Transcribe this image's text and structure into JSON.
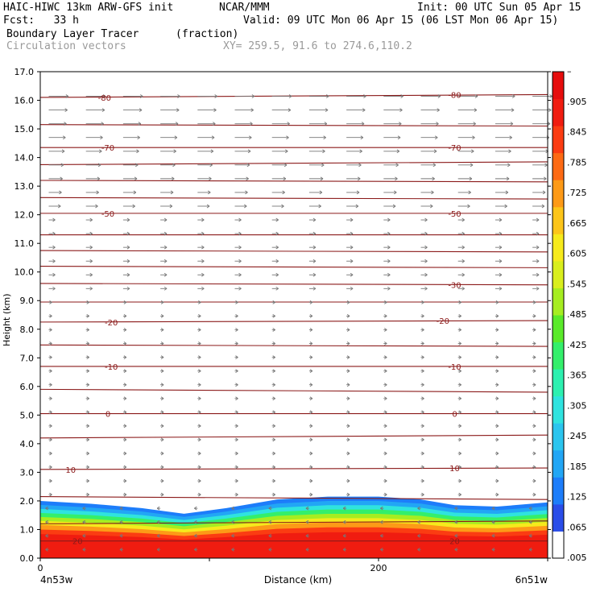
{
  "header": {
    "title_left": "HAIC-HIWC 13km ARW-GFS init",
    "org": "NCAR/MMM",
    "init": "Init: 00 UTC Sun 05 Apr 15",
    "fcst": "Fcst:   33 h",
    "valid": "Valid: 09 UTC Mon 06 Apr 15 (06 LST Mon 06 Apr 15)",
    "field": "Boundary Layer Tracer",
    "units": "(fraction)",
    "vectors": "Circulation vectors",
    "xy": "XY= 259.5, 91.6 to 274.6,110.2"
  },
  "chart_data": {
    "type": "heatmap",
    "ylabel": "Height (km)",
    "xlabel": "Distance (km)",
    "x_left_label": "4n53w",
    "x_right_label": "6n51w",
    "xlim": [
      0,
      300
    ],
    "ylim": [
      0,
      17
    ],
    "xticks": [
      "0",
      "200"
    ],
    "yticks": [
      "0.0",
      "1.0",
      "2.0",
      "3.0",
      "4.0",
      "5.0",
      "6.0",
      "7.0",
      "8.0",
      "9.0",
      "10.0",
      "11.0",
      "12.0",
      "13.0",
      "14.0",
      "15.0",
      "16.0",
      "17.0"
    ],
    "colorbar": {
      "labels": [
        ".005",
        ".065",
        ".125",
        ".185",
        ".245",
        ".305",
        ".365",
        ".425",
        ".485",
        ".545",
        ".605",
        ".665",
        ".725",
        ".785",
        ".845",
        ".905",
        "–"
      ],
      "colors": [
        "#ffffff",
        "#2a4de8",
        "#1d7dfa",
        "#22a6f5",
        "#2bc5ee",
        "#2fe3df",
        "#2df0b0",
        "#34ef6b",
        "#5aea2a",
        "#a6ed21",
        "#d9ee1d",
        "#f6ea1c",
        "#fcc51a",
        "#fd9a17",
        "#fd6a14",
        "#fb3c12",
        "#f01c10",
        "#e60d0d"
      ]
    },
    "tracer_profile": [
      {
        "x": 0,
        "top": 2.0
      },
      {
        "x": 30,
        "top": 1.9
      },
      {
        "x": 60,
        "top": 1.75
      },
      {
        "x": 85,
        "top": 1.55
      },
      {
        "x": 110,
        "top": 1.75
      },
      {
        "x": 140,
        "top": 2.05
      },
      {
        "x": 170,
        "top": 2.15
      },
      {
        "x": 200,
        "top": 2.15
      },
      {
        "x": 225,
        "top": 2.05
      },
      {
        "x": 245,
        "top": 1.85
      },
      {
        "x": 270,
        "top": 1.8
      },
      {
        "x": 300,
        "top": 1.95
      }
    ],
    "isotherm_labels": [
      {
        "value": "-80",
        "x": 38,
        "y": 16.1
      },
      {
        "value": "-80",
        "x": 245,
        "y": 16.2
      },
      {
        "value": "-70",
        "x": 40,
        "y": 14.35
      },
      {
        "value": "-70",
        "x": 245,
        "y": 14.35
      },
      {
        "value": "-50",
        "x": 40,
        "y": 12.05
      },
      {
        "value": "-50",
        "x": 245,
        "y": 12.05
      },
      {
        "value": "-30",
        "x": 245,
        "y": 9.55
      },
      {
        "value": "-20",
        "x": 42,
        "y": 8.25
      },
      {
        "value": "-20",
        "x": 238,
        "y": 8.3
      },
      {
        "value": "-10",
        "x": 42,
        "y": 6.7
      },
      {
        "value": "-10",
        "x": 245,
        "y": 6.7
      },
      {
        "value": "0",
        "x": 40,
        "y": 5.05
      },
      {
        "value": "0",
        "x": 245,
        "y": 5.05
      },
      {
        "value": "10",
        "x": 18,
        "y": 3.1
      },
      {
        "value": "10",
        "x": 245,
        "y": 3.15
      },
      {
        "value": "20",
        "x": 22,
        "y": 0.6
      },
      {
        "value": "20",
        "x": 245,
        "y": 0.6
      }
    ],
    "isotherms": [
      [
        0.6,
        0.6
      ],
      [
        1.2,
        1.3
      ],
      [
        2.15,
        2.05
      ],
      [
        3.1,
        3.15
      ],
      [
        4.2,
        4.3
      ],
      [
        5.05,
        5.05
      ],
      [
        5.9,
        5.8
      ],
      [
        6.7,
        6.7
      ],
      [
        7.45,
        7.4
      ],
      [
        8.25,
        8.3
      ],
      [
        8.95,
        8.95
      ],
      [
        9.6,
        9.55
      ],
      [
        10.2,
        10.15
      ],
      [
        10.75,
        10.7
      ],
      [
        11.3,
        11.3
      ],
      [
        12.05,
        12.05
      ],
      [
        12.6,
        12.55
      ],
      [
        13.2,
        13.15
      ],
      [
        13.75,
        13.85
      ],
      [
        14.35,
        14.35
      ],
      [
        15.15,
        15.1
      ],
      [
        16.1,
        16.2
      ]
    ]
  }
}
